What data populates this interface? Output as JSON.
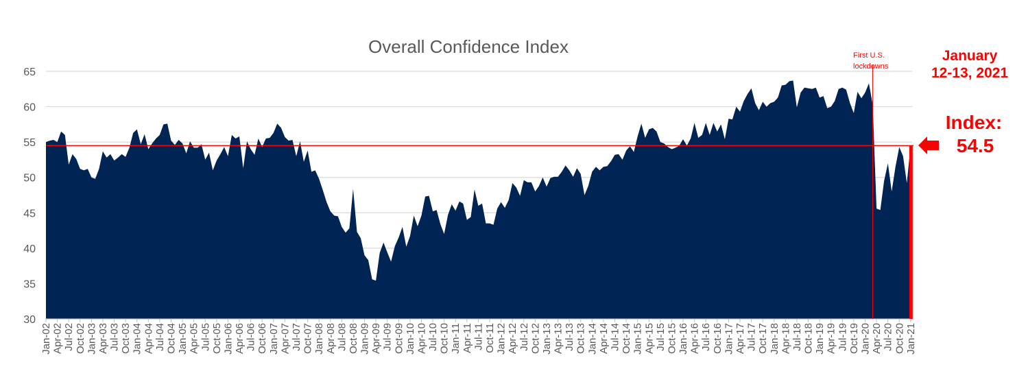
{
  "chart_data": {
    "type": "area",
    "title": "Overall Confidence Index",
    "xlabel": "",
    "ylabel": "",
    "x_start": "Jan-02",
    "frequency": "monthly",
    "ylim": [
      30,
      65
    ],
    "y_ticks": [
      30,
      35,
      40,
      45,
      50,
      55,
      60,
      65
    ],
    "grid": true,
    "fill_color": "#002554",
    "values": [
      55.0,
      55.2,
      55.3,
      55.0,
      56.5,
      56.0,
      51.8,
      53.3,
      52.6,
      51.2,
      51.0,
      51.2,
      50.0,
      49.8,
      51.2,
      53.7,
      52.8,
      53.3,
      52.4,
      52.8,
      53.3,
      52.9,
      54.2,
      56.3,
      56.8,
      54.7,
      56.1,
      54.0,
      54.8,
      55.5,
      56.0,
      57.5,
      57.6,
      55.2,
      54.6,
      55.3,
      54.8,
      53.4,
      55.1,
      54.2,
      54.2,
      54.7,
      52.5,
      53.5,
      51.0,
      52.4,
      53.3,
      54.3,
      53.0,
      56.0,
      55.5,
      55.8,
      51.3,
      55.1,
      54.0,
      53.2,
      55.5,
      54.3,
      55.5,
      55.6,
      56.3,
      57.6,
      57.0,
      55.7,
      55.2,
      55.3,
      53.0,
      55.1,
      52.2,
      53.8,
      50.8,
      51.0,
      49.8,
      48.2,
      46.5,
      45.2,
      44.6,
      44.5,
      43.0,
      42.2,
      42.8,
      48.4,
      42.3,
      41.4,
      39.0,
      38.3,
      35.6,
      35.4,
      39.3,
      40.8,
      39.4,
      38.1,
      40.3,
      41.5,
      43.0,
      40.2,
      41.7,
      44.6,
      43.1,
      44.6,
      47.3,
      47.4,
      45.2,
      45.4,
      43.4,
      42.0,
      44.7,
      46.2,
      45.3,
      46.6,
      46.3,
      44.0,
      44.4,
      48.3,
      46.0,
      46.3,
      43.5,
      43.5,
      43.3,
      45.6,
      46.5,
      45.7,
      46.8,
      49.2,
      48.6,
      47.4,
      49.6,
      49.3,
      49.3,
      48.0,
      48.8,
      50.0,
      48.7,
      49.9,
      50.1,
      50.1,
      50.8,
      51.7,
      51.0,
      50.1,
      51.3,
      50.5,
      47.5,
      48.8,
      50.8,
      51.5,
      51.0,
      51.5,
      51.6,
      52.3,
      53.2,
      53.3,
      52.5,
      53.8,
      54.4,
      53.6,
      55.8,
      57.6,
      55.6,
      56.8,
      57.0,
      56.5,
      55.0,
      54.8,
      54.3,
      54.0,
      54.2,
      54.5,
      55.4,
      54.5,
      55.5,
      57.7,
      55.6,
      56.0,
      57.7,
      56.0,
      57.7,
      56.5,
      57.5,
      55.4,
      58.3,
      58.2,
      60.0,
      59.3,
      60.8,
      61.8,
      62.6,
      60.5,
      59.5,
      60.7,
      60.0,
      60.5,
      60.7,
      61.3,
      63.0,
      63.1,
      63.6,
      63.7,
      59.9,
      62.0,
      62.7,
      62.6,
      62.5,
      62.7,
      61.3,
      61.5,
      59.8,
      60.0,
      60.8,
      62.5,
      62.7,
      62.4,
      60.5,
      59.1,
      62.1,
      61.2,
      62.0,
      63.3,
      60.3,
      45.6,
      45.4,
      49.5,
      52.0,
      48.0,
      51.5,
      54.3,
      53.0,
      49.2,
      54.5
    ],
    "x_tick_labels": [
      "Jan-02",
      "Apr-02",
      "Jul-02",
      "Oct-02",
      "Jan-03",
      "Apr-03",
      "Jul-03",
      "Oct-03",
      "Jan-04",
      "Apr-04",
      "Jul-04",
      "Oct-04",
      "Jan-05",
      "Apr-05",
      "Jul-05",
      "Oct-05",
      "Jan-06",
      "Apr-06",
      "Jul-06",
      "Oct-06",
      "Jan-07",
      "Apr-07",
      "Jul-07",
      "Oct-07",
      "Jan-08",
      "Apr-08",
      "Jul-08",
      "Oct-08",
      "Jan-09",
      "Apr-09",
      "Jul-09",
      "Oct-09",
      "Jan-10",
      "Apr-10",
      "Jul-10",
      "Oct-10",
      "Jan-11",
      "Apr-11",
      "Jul-11",
      "Oct-11",
      "Jan-12",
      "Apr-12",
      "Jul-12",
      "Oct-12",
      "Jan-13",
      "Apr-13",
      "Jul-13",
      "Oct-13",
      "Jan-14",
      "Apr-14",
      "Jul-14",
      "Oct-14",
      "Jan-15",
      "Apr-15",
      "Jul-15",
      "Oct-15",
      "Jan-16",
      "Apr-16",
      "Jul-16",
      "Oct-16",
      "Jan-17",
      "Apr-17",
      "Jul-17",
      "Oct-17",
      "Jan-18",
      "Apr-18",
      "Jul-18",
      "Oct-18",
      "Jan-19",
      "Apr-19",
      "Jul-19",
      "Oct-19",
      "Jan-20",
      "Apr-20",
      "Jul-20",
      "Oct-20",
      "Jan-21"
    ],
    "reference_line": {
      "value": 54.5,
      "color": "#ff0000"
    },
    "event_line": {
      "x": "Mar-20",
      "label_line1": "First U.S.",
      "label_line2": "lockdowns",
      "color": "#ff0000"
    },
    "annotations": {
      "date_line1": "January",
      "date_line2": "12-13, 2021",
      "index_line1": "Index:",
      "index_line2": "54.5",
      "arrow_icon": "left-arrow",
      "color": "#ff0000"
    }
  }
}
